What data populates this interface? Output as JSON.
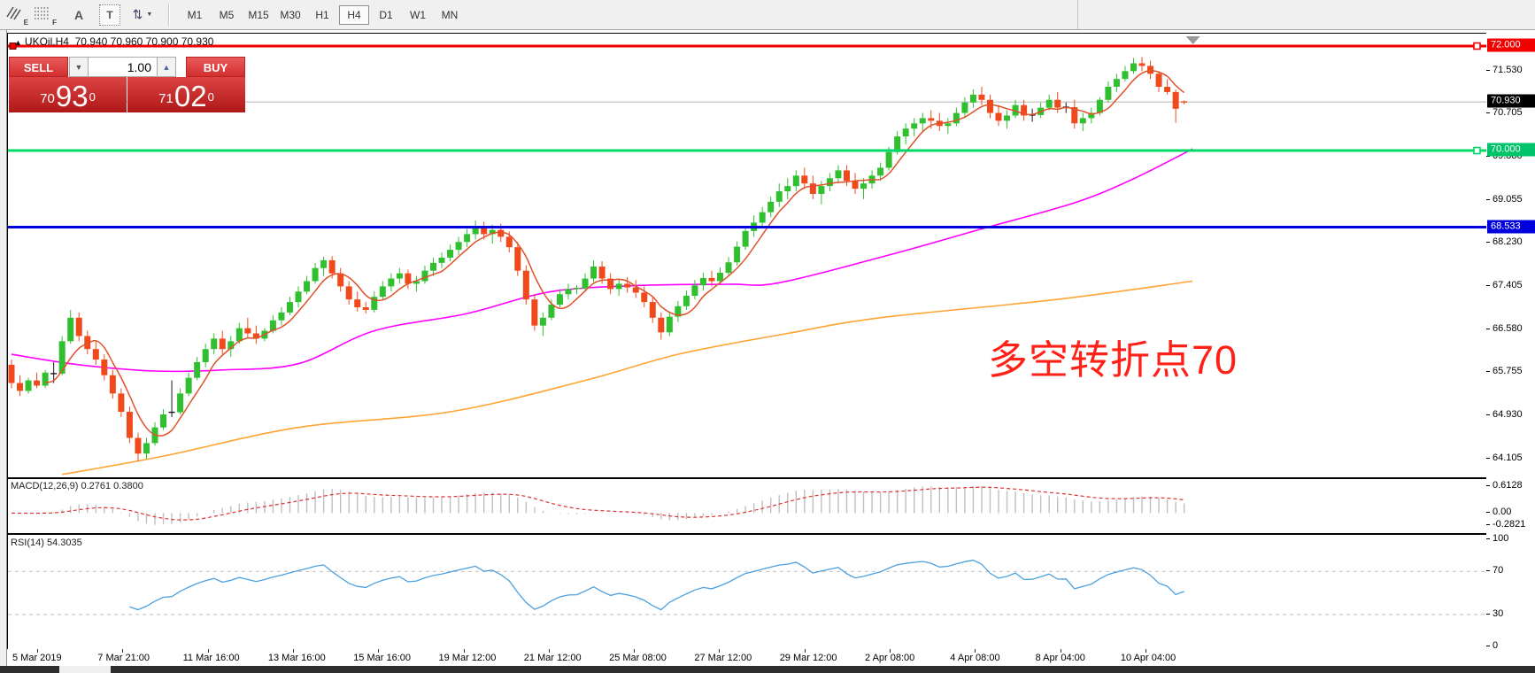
{
  "toolbar": {
    "icons": [
      {
        "name": "expert-hatch-icon",
        "sub": "E"
      },
      {
        "name": "fibo-grid-icon",
        "sub": "F"
      },
      {
        "name": "text-label-icon",
        "glyph": "A"
      },
      {
        "name": "text-tool-icon",
        "glyph": "T"
      },
      {
        "name": "arrows-tool-icon",
        "glyph": "⇅",
        "caret": "▼"
      }
    ],
    "timeframes": [
      "M1",
      "M5",
      "M15",
      "M30",
      "H1",
      "H4",
      "D1",
      "W1",
      "MN"
    ],
    "active_timeframe": "H4"
  },
  "chart": {
    "title_symbol": "UKOil,H4",
    "title_ohlc": "70.940 70.960 70.900 70.930",
    "title_triangle": "▲",
    "annotation": {
      "text": "多空转折点70",
      "color": "#ff2018"
    }
  },
  "trade_panel": {
    "sell_label": "SELL",
    "buy_label": "BUY",
    "volume": "1.00",
    "volume_down_glyph": "▼",
    "volume_up_glyph": "▲",
    "sell_price": {
      "small": "70",
      "big": "93",
      "sup": "0"
    },
    "buy_price": {
      "small": "71",
      "big": "02",
      "sup": "0"
    }
  },
  "chart_data": {
    "type": "candlestick",
    "symbol": "UKOil",
    "timeframe": "H4",
    "current_bar": {
      "open": 70.94,
      "high": 70.96,
      "low": 70.9,
      "close": 70.93
    },
    "bid": 70.93,
    "ylim": [
      63.75,
      72.24
    ],
    "axis_ticks": [
      "71.530",
      "70.705",
      "69.880",
      "69.055",
      "68.230",
      "67.405",
      "66.580",
      "65.755",
      "64.930",
      "64.105"
    ],
    "badges": [
      {
        "text": "72.000",
        "value": 72.0,
        "color": "#f20000"
      },
      {
        "text": "70.930",
        "value": 70.93,
        "color": "#000000"
      },
      {
        "text": "70.000",
        "value": 70.0,
        "color": "#00c46a"
      },
      {
        "text": "68.533",
        "value": 68.533,
        "color": "#0000dd"
      }
    ],
    "hlines": [
      {
        "name": "resistance-line",
        "value": 72.0,
        "color": "#f20000",
        "width": 3,
        "left_handle": true,
        "right_handle": true
      },
      {
        "name": "support-line",
        "value": 70.0,
        "color": "#00d966",
        "width": 3,
        "left_handle": false,
        "right_handle": true
      },
      {
        "name": "blue-trend-level",
        "value": 68.533,
        "color": "#0000dd",
        "width": 3,
        "left_handle": false,
        "right_handle": false
      },
      {
        "name": "bid-line",
        "value": 70.93,
        "color": "#b4b4b4",
        "width": 1,
        "left_handle": false,
        "right_handle": false
      }
    ],
    "colors": {
      "up": "#2fbf2f",
      "down": "#f04a1c",
      "black": "#151515",
      "ma_fast": "#e0512a",
      "ma_mid": "#ff00ff",
      "ma_slow": "#ffa333"
    },
    "black_indices": [
      5,
      19,
      121,
      125
    ],
    "candles": [
      [
        65.9,
        66.0,
        65.45,
        65.55
      ],
      [
        65.55,
        65.7,
        65.3,
        65.4
      ],
      [
        65.4,
        65.65,
        65.35,
        65.6
      ],
      [
        65.6,
        65.75,
        65.45,
        65.5
      ],
      [
        65.5,
        65.8,
        65.45,
        65.75
      ],
      [
        65.72,
        65.95,
        65.55,
        65.73
      ],
      [
        65.73,
        66.45,
        65.7,
        66.35
      ],
      [
        66.35,
        66.95,
        66.3,
        66.8
      ],
      [
        66.8,
        66.9,
        66.35,
        66.45
      ],
      [
        66.45,
        66.55,
        66.1,
        66.2
      ],
      [
        66.2,
        66.35,
        65.9,
        66.0
      ],
      [
        66.0,
        66.1,
        65.6,
        65.7
      ],
      [
        65.7,
        65.8,
        65.25,
        65.35
      ],
      [
        65.35,
        65.45,
        64.9,
        65.0
      ],
      [
        65.0,
        65.1,
        64.4,
        64.5
      ],
      [
        64.5,
        64.6,
        64.05,
        64.2
      ],
      [
        64.2,
        64.5,
        64.1,
        64.4
      ],
      [
        64.4,
        64.8,
        64.35,
        64.7
      ],
      [
        64.7,
        65.05,
        64.65,
        64.95
      ],
      [
        64.97,
        65.6,
        64.9,
        64.99
      ],
      [
        64.99,
        65.45,
        64.95,
        65.35
      ],
      [
        65.35,
        65.75,
        65.3,
        65.65
      ],
      [
        65.65,
        66.05,
        65.6,
        65.95
      ],
      [
        65.95,
        66.3,
        65.85,
        66.2
      ],
      [
        66.2,
        66.5,
        66.1,
        66.4
      ],
      [
        66.4,
        66.55,
        66.1,
        66.2
      ],
      [
        66.2,
        66.45,
        66.05,
        66.35
      ],
      [
        66.35,
        66.7,
        66.3,
        66.6
      ],
      [
        66.6,
        66.8,
        66.4,
        66.5
      ],
      [
        66.5,
        66.65,
        66.3,
        66.4
      ],
      [
        66.4,
        66.6,
        66.35,
        66.55
      ],
      [
        66.55,
        66.85,
        66.5,
        66.75
      ],
      [
        66.75,
        67.0,
        66.65,
        66.9
      ],
      [
        66.9,
        67.2,
        66.85,
        67.1
      ],
      [
        67.1,
        67.4,
        67.0,
        67.3
      ],
      [
        67.3,
        67.6,
        67.25,
        67.5
      ],
      [
        67.5,
        67.85,
        67.45,
        67.75
      ],
      [
        67.75,
        67.97,
        67.6,
        67.9
      ],
      [
        67.9,
        67.98,
        67.55,
        67.65
      ],
      [
        67.65,
        67.75,
        67.3,
        67.4
      ],
      [
        67.4,
        67.5,
        67.05,
        67.15
      ],
      [
        67.15,
        67.3,
        66.92,
        67.0
      ],
      [
        67.0,
        67.1,
        66.88,
        66.95
      ],
      [
        66.95,
        67.3,
        66.9,
        67.2
      ],
      [
        67.2,
        67.5,
        67.15,
        67.4
      ],
      [
        67.4,
        67.65,
        67.3,
        67.55
      ],
      [
        67.55,
        67.75,
        67.45,
        67.65
      ],
      [
        67.65,
        67.72,
        67.35,
        67.45
      ],
      [
        67.45,
        67.6,
        67.3,
        67.5
      ],
      [
        67.5,
        67.8,
        67.45,
        67.7
      ],
      [
        67.7,
        67.95,
        67.6,
        67.85
      ],
      [
        67.85,
        68.05,
        67.75,
        67.95
      ],
      [
        67.95,
        68.2,
        67.88,
        68.1
      ],
      [
        68.1,
        68.35,
        68.0,
        68.25
      ],
      [
        68.25,
        68.5,
        68.15,
        68.4
      ],
      [
        68.4,
        68.66,
        68.3,
        68.55
      ],
      [
        68.55,
        68.64,
        68.3,
        68.4
      ],
      [
        68.4,
        68.58,
        68.22,
        68.48
      ],
      [
        68.48,
        68.6,
        68.25,
        68.35
      ],
      [
        68.35,
        68.45,
        68.05,
        68.15
      ],
      [
        68.15,
        68.25,
        67.6,
        67.7
      ],
      [
        67.7,
        67.8,
        67.05,
        67.15
      ],
      [
        67.15,
        67.25,
        66.55,
        66.65
      ],
      [
        66.65,
        66.9,
        66.45,
        66.8
      ],
      [
        66.8,
        67.15,
        66.75,
        67.05
      ],
      [
        67.05,
        67.35,
        67.0,
        67.25
      ],
      [
        67.25,
        67.45,
        67.15,
        67.35
      ],
      [
        67.35,
        67.42,
        67.25,
        67.36
      ],
      [
        67.36,
        67.65,
        67.3,
        67.55
      ],
      [
        67.55,
        67.9,
        67.48,
        67.78
      ],
      [
        67.78,
        67.88,
        67.45,
        67.55
      ],
      [
        67.55,
        67.65,
        67.25,
        67.35
      ],
      [
        67.35,
        67.55,
        67.22,
        67.45
      ],
      [
        67.45,
        67.58,
        67.28,
        67.38
      ],
      [
        67.38,
        67.52,
        67.18,
        67.28
      ],
      [
        67.28,
        67.4,
        67.0,
        67.1
      ],
      [
        67.1,
        67.2,
        66.7,
        66.8
      ],
      [
        66.8,
        66.9,
        66.38,
        66.52
      ],
      [
        66.52,
        66.92,
        66.45,
        66.82
      ],
      [
        66.82,
        67.12,
        66.72,
        67.02
      ],
      [
        67.02,
        67.32,
        66.95,
        67.22
      ],
      [
        67.22,
        67.52,
        67.15,
        67.42
      ],
      [
        67.42,
        67.66,
        67.32,
        67.56
      ],
      [
        67.56,
        67.7,
        67.4,
        67.5
      ],
      [
        67.5,
        67.76,
        67.45,
        67.66
      ],
      [
        67.66,
        67.96,
        67.6,
        67.86
      ],
      [
        67.86,
        68.26,
        67.8,
        68.16
      ],
      [
        68.16,
        68.56,
        68.1,
        68.46
      ],
      [
        68.46,
        68.76,
        68.35,
        68.62
      ],
      [
        68.62,
        68.92,
        68.52,
        68.82
      ],
      [
        68.82,
        69.12,
        68.72,
        69.02
      ],
      [
        69.02,
        69.37,
        68.92,
        69.22
      ],
      [
        69.22,
        69.47,
        69.07,
        69.32
      ],
      [
        69.32,
        69.62,
        69.22,
        69.52
      ],
      [
        69.52,
        69.67,
        69.27,
        69.37
      ],
      [
        69.37,
        69.52,
        69.07,
        69.17
      ],
      [
        69.17,
        69.42,
        68.97,
        69.32
      ],
      [
        69.32,
        69.57,
        69.22,
        69.47
      ],
      [
        69.47,
        69.72,
        69.37,
        69.62
      ],
      [
        69.62,
        69.72,
        69.32,
        69.42
      ],
      [
        69.42,
        69.57,
        69.17,
        69.27
      ],
      [
        69.27,
        69.47,
        69.07,
        69.37
      ],
      [
        69.37,
        69.62,
        69.27,
        69.52
      ],
      [
        69.52,
        69.77,
        69.42,
        69.67
      ],
      [
        69.67,
        70.07,
        69.62,
        69.97
      ],
      [
        69.97,
        70.37,
        69.92,
        70.27
      ],
      [
        70.27,
        70.52,
        70.12,
        70.42
      ],
      [
        70.42,
        70.62,
        70.27,
        70.52
      ],
      [
        70.52,
        70.72,
        70.37,
        70.62
      ],
      [
        70.62,
        70.77,
        70.42,
        70.57
      ],
      [
        70.57,
        70.72,
        70.37,
        70.47
      ],
      [
        70.47,
        70.62,
        70.32,
        70.52
      ],
      [
        70.52,
        70.82,
        70.47,
        70.72
      ],
      [
        70.72,
        71.02,
        70.62,
        70.92
      ],
      [
        70.92,
        71.17,
        70.82,
        71.07
      ],
      [
        71.07,
        71.22,
        70.87,
        70.97
      ],
      [
        70.97,
        71.07,
        70.62,
        70.72
      ],
      [
        70.72,
        70.87,
        70.47,
        70.57
      ],
      [
        70.57,
        70.77,
        70.42,
        70.67
      ],
      [
        70.67,
        70.97,
        70.62,
        70.87
      ],
      [
        70.87,
        70.97,
        70.57,
        70.67
      ],
      [
        70.67,
        70.8,
        70.55,
        70.68
      ],
      [
        70.68,
        70.92,
        70.62,
        70.82
      ],
      [
        70.82,
        71.07,
        70.77,
        70.97
      ],
      [
        70.97,
        71.12,
        70.72,
        70.82
      ],
      [
        70.82,
        70.92,
        70.72,
        70.83
      ],
      [
        70.83,
        70.97,
        70.42,
        70.52
      ],
      [
        70.52,
        70.72,
        70.37,
        70.62
      ],
      [
        70.62,
        70.82,
        70.52,
        70.72
      ],
      [
        70.72,
        71.02,
        70.67,
        70.97
      ],
      [
        70.97,
        71.32,
        70.92,
        71.22
      ],
      [
        71.22,
        71.47,
        71.12,
        71.37
      ],
      [
        71.37,
        71.62,
        71.32,
        71.52
      ],
      [
        71.52,
        71.77,
        71.47,
        71.67
      ],
      [
        71.67,
        71.79,
        71.52,
        71.62
      ],
      [
        71.62,
        71.72,
        71.37,
        71.47
      ],
      [
        71.47,
        71.52,
        71.12,
        71.22
      ],
      [
        71.22,
        71.37,
        71.07,
        71.12
      ],
      [
        71.12,
        71.17,
        70.53,
        70.8
      ],
      [
        70.94,
        70.96,
        70.88,
        70.93
      ]
    ],
    "ma_fast_window": 5,
    "ma_mid_anchors": [
      [
        0,
        66.1
      ],
      [
        8,
        65.9
      ],
      [
        17,
        65.78
      ],
      [
        25,
        65.8
      ],
      [
        34,
        65.92
      ],
      [
        43,
        66.55
      ],
      [
        54,
        66.88
      ],
      [
        64,
        67.3
      ],
      [
        75,
        67.42
      ],
      [
        85,
        67.44
      ],
      [
        91,
        67.47
      ],
      [
        104,
        68.0
      ],
      [
        115,
        68.5
      ],
      [
        126,
        69.0
      ],
      [
        133,
        69.46
      ],
      [
        140,
        70.03
      ]
    ],
    "ma_slow_anchors": [
      [
        6,
        63.8
      ],
      [
        18,
        64.15
      ],
      [
        34,
        64.7
      ],
      [
        52,
        65.0
      ],
      [
        68,
        65.6
      ],
      [
        79,
        66.1
      ],
      [
        92,
        66.5
      ],
      [
        103,
        66.8
      ],
      [
        124,
        67.15
      ],
      [
        140,
        67.5
      ]
    ],
    "time_labels": [
      "5 Mar 2019",
      "7 Mar 21:00",
      "11 Mar 16:00",
      "13 Mar 16:00",
      "15 Mar 16:00",
      "19 Mar 12:00",
      "21 Mar 12:00",
      "25 Mar 08:00",
      "27 Mar 12:00",
      "29 Mar 12:00",
      "2 Apr 08:00",
      "4 Apr 08:00",
      "8 Apr 04:00",
      "10 Apr 04:00"
    ],
    "indicators": {
      "macd": {
        "label": "MACD(12,26,9)",
        "values": "0.2761 0.3800",
        "fast": 12,
        "slow": 26,
        "signal": 9,
        "axis_ticks": [
          "0.6128",
          "0.00",
          "-0.2821"
        ],
        "range": [
          -0.46,
          0.78
        ],
        "histogram_color": "#bfbfbf",
        "signal_color": "#e03030"
      },
      "rsi": {
        "label": "RSI(14)",
        "value": "54.3035",
        "period": 14,
        "axis_ticks": [
          "100",
          "70",
          "30",
          "0"
        ],
        "levels": [
          70,
          30
        ],
        "range": [
          0,
          100
        ],
        "line_color": "#4aa0e0"
      }
    }
  }
}
